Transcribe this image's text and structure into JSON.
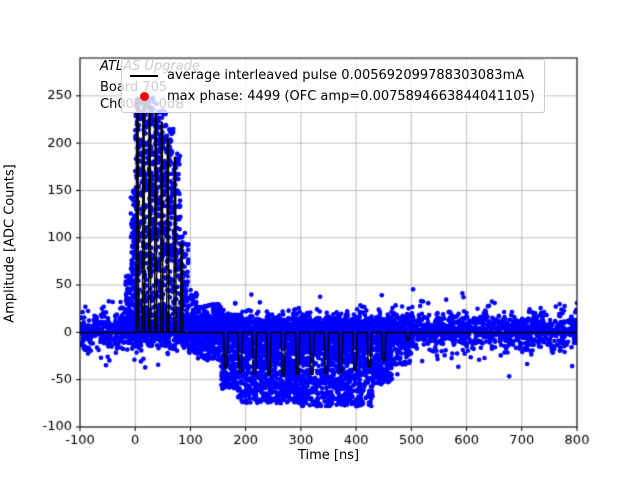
{
  "figure": {
    "background": "#ffffff"
  },
  "annotations": {
    "experiment": "ATLAS Upgrade",
    "board": "Board 705",
    "channel": "Ch0061, 0dB"
  },
  "legend": {
    "position": "upper center",
    "entries": [
      {
        "marker": "line",
        "color": "#000000",
        "label": "average interleaved pulse 0.005692099788303083mA"
      },
      {
        "marker": "dot",
        "color": "#ff0000",
        "label": "max phase: 4499 (OFC amp=0.0075894663844041105)"
      }
    ]
  },
  "chart_data": {
    "type": "scatter",
    "title": "",
    "xlabel": "Time [ns]",
    "ylabel": "Amplitude [ADC Counts]",
    "xlim": [
      -100,
      800
    ],
    "ylim": [
      -100,
      290
    ],
    "x_ticks": [
      -100,
      0,
      100,
      200,
      300,
      400,
      500,
      600,
      700,
      800
    ],
    "y_ticks": [
      -100,
      -50,
      0,
      50,
      100,
      150,
      200,
      250
    ],
    "grid": true,
    "grid_color": "#b0b0b0",
    "scatter_color": "#0000ff",
    "line_color": "#000000",
    "scatter_description": "raw interleaved ADC samples: noise band around 0, positive pulse spikes to ~255 ADC counts between 0 and 110 ns, negative undershoot to ~-78 ADC counts between 150 and 470 ns",
    "scatter_segments": [
      {
        "mode": "band",
        "x0": -100,
        "x1": 800,
        "mean": 2,
        "sd": 9,
        "n": 2400
      },
      {
        "mode": "band",
        "x0": -100,
        "x1": 800,
        "mean": 0,
        "sd": 16,
        "n": 550
      },
      {
        "mode": "column",
        "x0": -18,
        "x1": -8,
        "ymin": -10,
        "ymax": 60,
        "n": 60
      },
      {
        "mode": "column",
        "x0": -8,
        "x1": 2,
        "ymin": -15,
        "ymax": 150,
        "n": 120
      },
      {
        "mode": "column",
        "x0": 0,
        "x1": 10,
        "ymin": -15,
        "ymax": 255,
        "n": 160
      },
      {
        "mode": "column",
        "x0": 12,
        "x1": 22,
        "ymin": -15,
        "ymax": 252,
        "n": 150
      },
      {
        "mode": "column",
        "x0": 24,
        "x1": 34,
        "ymin": -15,
        "ymax": 248,
        "n": 140
      },
      {
        "mode": "column",
        "x0": 36,
        "x1": 46,
        "ymin": -15,
        "ymax": 242,
        "n": 130
      },
      {
        "mode": "column",
        "x0": 48,
        "x1": 58,
        "ymin": -15,
        "ymax": 235,
        "n": 120
      },
      {
        "mode": "column",
        "x0": 60,
        "x1": 70,
        "ymin": -15,
        "ymax": 215,
        "n": 100
      },
      {
        "mode": "column",
        "x0": 70,
        "x1": 82,
        "ymin": -18,
        "ymax": 195,
        "n": 90
      },
      {
        "mode": "column",
        "x0": 82,
        "x1": 96,
        "ymin": -20,
        "ymax": 105,
        "n": 80
      },
      {
        "mode": "column",
        "x0": 96,
        "x1": 112,
        "ymin": -22,
        "ymax": 50,
        "n": 70
      },
      {
        "mode": "column",
        "x0": 112,
        "x1": 155,
        "ymin": -30,
        "ymax": 30,
        "n": 200
      },
      {
        "mode": "column",
        "x0": 155,
        "x1": 185,
        "ymin": -60,
        "ymax": 20,
        "n": 260
      },
      {
        "mode": "column",
        "x0": 185,
        "x1": 300,
        "ymin": -75,
        "ymax": 15,
        "n": 900
      },
      {
        "mode": "column",
        "x0": 300,
        "x1": 430,
        "ymin": -78,
        "ymax": 15,
        "n": 1000
      },
      {
        "mode": "column",
        "x0": 430,
        "x1": 465,
        "ymin": -55,
        "ymax": 15,
        "n": 220
      },
      {
        "mode": "column",
        "x0": 465,
        "x1": 500,
        "ymin": -35,
        "ymax": 20,
        "n": 150
      }
    ],
    "average_line": [
      [
        -100,
        0
      ],
      [
        -2,
        0
      ],
      [
        2,
        0
      ],
      [
        3,
        248
      ],
      [
        5,
        248
      ],
      [
        6,
        0
      ],
      [
        13,
        0
      ],
      [
        14,
        245
      ],
      [
        16,
        245
      ],
      [
        17,
        0
      ],
      [
        24,
        0
      ],
      [
        25,
        240
      ],
      [
        27,
        240
      ],
      [
        28,
        0
      ],
      [
        35,
        0
      ],
      [
        36,
        232
      ],
      [
        38,
        232
      ],
      [
        39,
        0
      ],
      [
        46,
        0
      ],
      [
        47,
        222
      ],
      [
        49,
        222
      ],
      [
        50,
        0
      ],
      [
        57,
        0
      ],
      [
        58,
        205
      ],
      [
        60,
        205
      ],
      [
        61,
        0
      ],
      [
        70,
        0
      ],
      [
        71,
        185
      ],
      [
        73,
        185
      ],
      [
        74,
        0
      ],
      [
        82,
        0
      ],
      [
        83,
        95
      ],
      [
        85,
        95
      ],
      [
        86,
        0
      ],
      [
        95,
        0
      ],
      [
        110,
        0
      ],
      [
        160,
        0
      ],
      [
        162,
        -38
      ],
      [
        166,
        -38
      ],
      [
        168,
        0
      ],
      [
        186,
        0
      ],
      [
        188,
        -42
      ],
      [
        192,
        -42
      ],
      [
        194,
        0
      ],
      [
        212,
        0
      ],
      [
        214,
        -44
      ],
      [
        218,
        -44
      ],
      [
        220,
        0
      ],
      [
        238,
        0
      ],
      [
        240,
        -45
      ],
      [
        244,
        -45
      ],
      [
        246,
        0
      ],
      [
        264,
        0
      ],
      [
        266,
        -45
      ],
      [
        270,
        -45
      ],
      [
        272,
        0
      ],
      [
        290,
        0
      ],
      [
        292,
        -44
      ],
      [
        296,
        -44
      ],
      [
        298,
        0
      ],
      [
        316,
        0
      ],
      [
        318,
        -44
      ],
      [
        322,
        -44
      ],
      [
        324,
        0
      ],
      [
        342,
        0
      ],
      [
        344,
        -43
      ],
      [
        348,
        -43
      ],
      [
        350,
        0
      ],
      [
        368,
        0
      ],
      [
        370,
        -42
      ],
      [
        374,
        -42
      ],
      [
        376,
        0
      ],
      [
        394,
        0
      ],
      [
        396,
        -40
      ],
      [
        400,
        -40
      ],
      [
        402,
        0
      ],
      [
        420,
        0
      ],
      [
        422,
        -36
      ],
      [
        426,
        -36
      ],
      [
        428,
        0
      ],
      [
        446,
        0
      ],
      [
        448,
        -30
      ],
      [
        452,
        -30
      ],
      [
        454,
        0
      ],
      [
        470,
        0
      ],
      [
        490,
        0
      ],
      [
        492,
        -8
      ],
      [
        496,
        -8
      ],
      [
        498,
        0
      ],
      [
        520,
        0
      ],
      [
        800,
        0
      ]
    ]
  }
}
